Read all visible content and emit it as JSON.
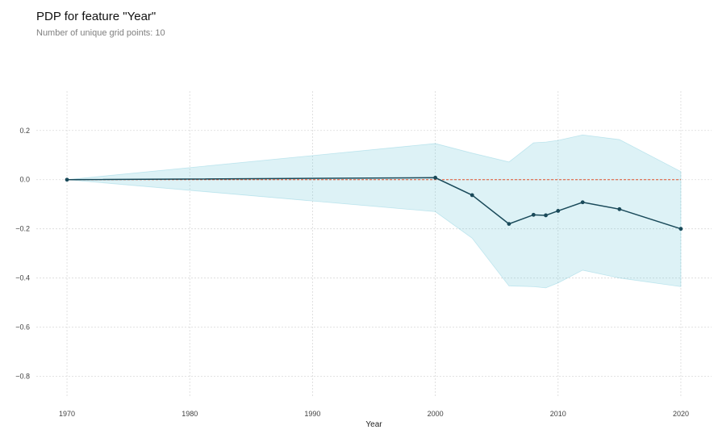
{
  "header": {
    "title": "PDP for feature \"Year\"",
    "subtitle": "Number of unique grid points: 10"
  },
  "chart_data": {
    "type": "line",
    "title": "PDP for feature \"Year\"",
    "subtitle": "Number of unique grid points: 10",
    "xlabel": "Year",
    "ylabel": "",
    "xlim": [
      1967.5,
      2022.5
    ],
    "ylim": [
      -0.88,
      0.36
    ],
    "xticks": [
      1970,
      1980,
      1990,
      2000,
      2010,
      2020
    ],
    "yticks": [
      -0.8,
      -0.6,
      -0.4,
      -0.2,
      0.0,
      0.2
    ],
    "xtick_labels": [
      "1970",
      "1980",
      "1990",
      "2000",
      "2010",
      "2020"
    ],
    "ytick_labels": [
      "−0.8",
      "−0.6",
      "−0.4",
      "−0.2",
      "0.0",
      "0.2"
    ],
    "grid": true,
    "series": [
      {
        "x": [
          1970,
          2000,
          2003,
          2006,
          2008,
          2009,
          2010,
          2012,
          2015,
          2020
        ],
        "values": [
          0.0,
          0.008,
          -0.063,
          -0.18,
          -0.143,
          -0.145,
          -0.127,
          -0.092,
          -0.12,
          -0.2
        ],
        "upper": [
          0.0,
          0.147,
          0.108,
          0.072,
          0.15,
          0.153,
          0.16,
          0.182,
          0.163,
          0.033
        ],
        "lower": [
          0.0,
          -0.13,
          -0.238,
          -0.432,
          -0.435,
          -0.44,
          -0.42,
          -0.368,
          -0.4,
          -0.435
        ]
      }
    ],
    "reference_line": {
      "y": 0.0
    },
    "colors": {
      "line": "#1a4a5a",
      "band": "#66c2d7",
      "reference": "#e1502a",
      "grid": "#d9d9d9"
    }
  }
}
